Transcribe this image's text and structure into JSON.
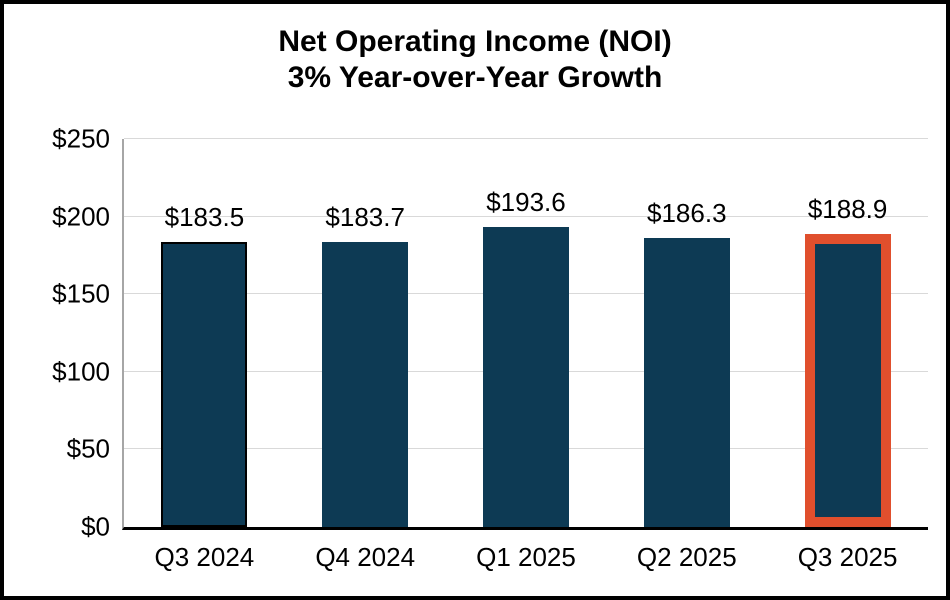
{
  "title": "Net Operating Income (NOI)",
  "subtitle": "3% Year-over-Year Growth",
  "chart_data": {
    "type": "bar",
    "title": "Net Operating Income (NOI)",
    "subtitle": "3% Year-over-Year Growth",
    "categories": [
      "Q3 2024",
      "Q4 2024",
      "Q1 2025",
      "Q2 2025",
      "Q3 2025"
    ],
    "values": [
      183.5,
      183.7,
      193.6,
      186.3,
      188.9
    ],
    "data_labels": [
      "$183.5",
      "$183.7",
      "$193.6",
      "$186.3",
      "$188.9"
    ],
    "xlabel": "",
    "ylabel": "",
    "ylim": [
      0,
      250
    ],
    "ytick_step": 50,
    "ytick_labels": [
      "$0",
      "$50",
      "$100",
      "$150",
      "$200",
      "$250"
    ],
    "grid": true,
    "legend": false,
    "units": "USD millions",
    "bar_color": "#0d3a54",
    "first_bar_border_color": "#000000",
    "highlight_index": 4,
    "highlight_border_color": "#e04f2d",
    "gridline_color": "#d9d9d9",
    "axis_line_color": "#a6a6a6",
    "baseline_color": "#000000"
  }
}
